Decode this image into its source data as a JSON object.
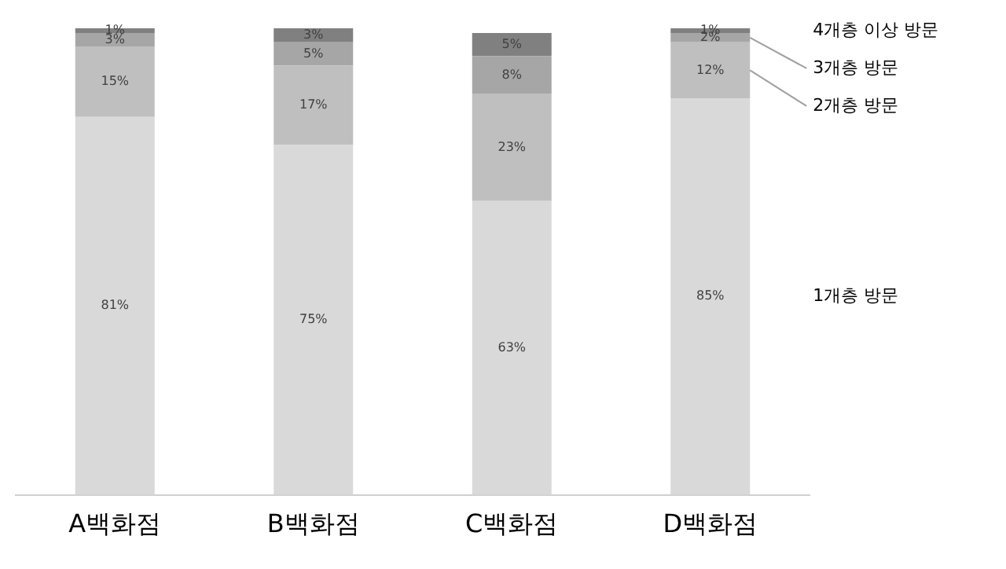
{
  "chart_data": {
    "type": "bar",
    "stacked": true,
    "categories": [
      "A백화점",
      "B백화점",
      "C백화점",
      "D백화점"
    ],
    "series": [
      {
        "name": "1개층 방문",
        "color": "#d9d9d9",
        "values": [
          81,
          75,
          63,
          85
        ],
        "value_labels": [
          "81%",
          "75%",
          "63%",
          "85%"
        ]
      },
      {
        "name": "2개층 방문",
        "color": "#bfbfbf",
        "values": [
          15,
          17,
          23,
          12
        ],
        "value_labels": [
          "15%",
          "17%",
          "23%",
          "12%"
        ]
      },
      {
        "name": "3개층 방문",
        "color": "#a6a6a6",
        "values": [
          3,
          5,
          8,
          2
        ],
        "value_labels": [
          "3%",
          "5%",
          "8%",
          "2%"
        ]
      },
      {
        "name": "4개층 이상 방문",
        "color": "#808080",
        "values": [
          1,
          3,
          5,
          1
        ],
        "value_labels": [
          "1%",
          "3%",
          "5%",
          "1%"
        ]
      }
    ],
    "tick_labels": "x",
    "grid": false,
    "legend": false
  }
}
